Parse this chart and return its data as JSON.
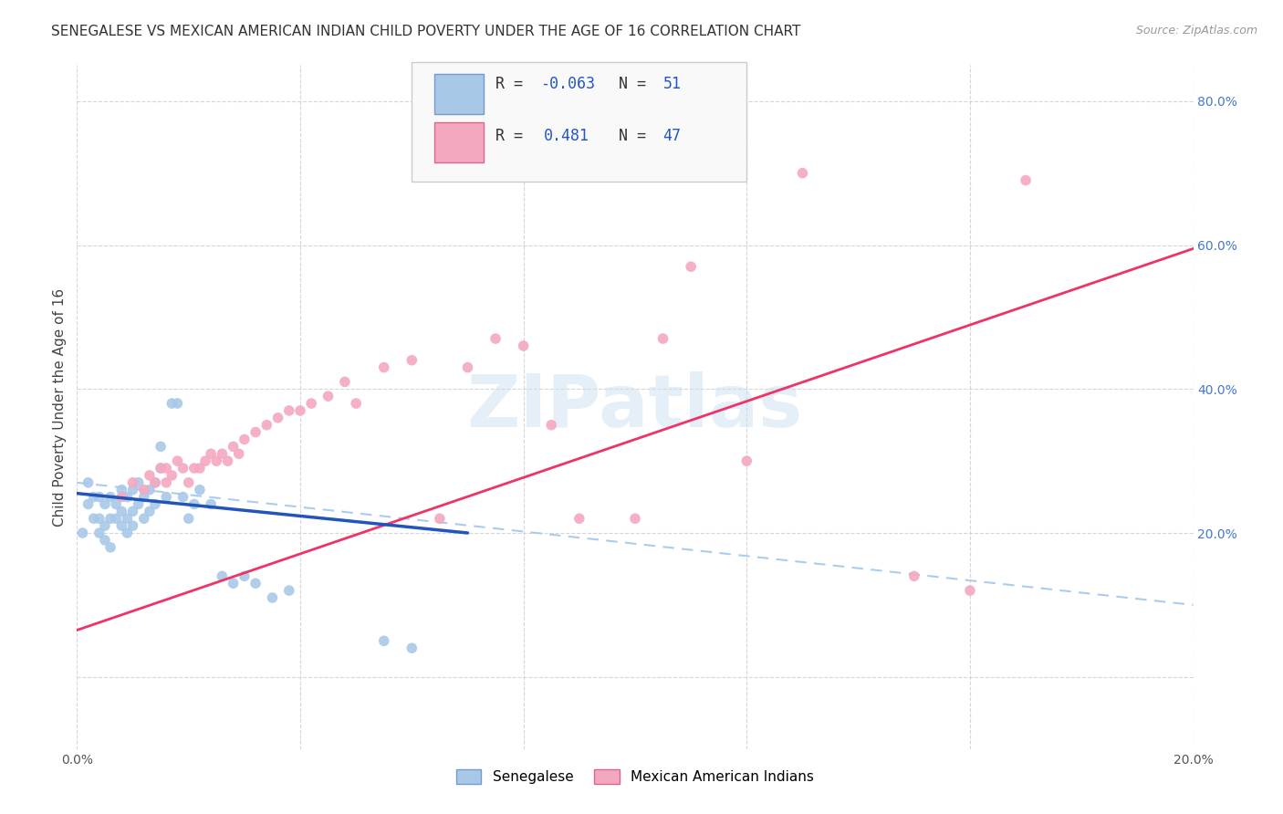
{
  "title": "SENEGALESE VS MEXICAN AMERICAN INDIAN CHILD POVERTY UNDER THE AGE OF 16 CORRELATION CHART",
  "source": "Source: ZipAtlas.com",
  "ylabel": "Child Poverty Under the Age of 16",
  "watermark": "ZIPatlas",
  "xlim": [
    0.0,
    0.2
  ],
  "ylim": [
    -0.1,
    0.85
  ],
  "xtick_positions": [
    0.0,
    0.04,
    0.08,
    0.12,
    0.16,
    0.2
  ],
  "xtick_labels": [
    "0.0%",
    "",
    "",
    "",
    "",
    "20.0%"
  ],
  "ytick_positions": [
    0.0,
    0.2,
    0.4,
    0.6,
    0.8
  ],
  "ytick_labels": [
    "",
    "20.0%",
    "40.0%",
    "60.0%",
    "80.0%"
  ],
  "blue_scatter_x": [
    0.001,
    0.002,
    0.002,
    0.003,
    0.003,
    0.004,
    0.004,
    0.004,
    0.005,
    0.005,
    0.005,
    0.006,
    0.006,
    0.006,
    0.007,
    0.007,
    0.008,
    0.008,
    0.008,
    0.009,
    0.009,
    0.009,
    0.01,
    0.01,
    0.01,
    0.011,
    0.011,
    0.012,
    0.012,
    0.013,
    0.013,
    0.014,
    0.014,
    0.015,
    0.015,
    0.016,
    0.017,
    0.018,
    0.019,
    0.02,
    0.021,
    0.022,
    0.024,
    0.026,
    0.028,
    0.03,
    0.032,
    0.035,
    0.038,
    0.055,
    0.06
  ],
  "blue_scatter_y": [
    0.2,
    0.24,
    0.27,
    0.22,
    0.25,
    0.2,
    0.22,
    0.25,
    0.19,
    0.21,
    0.24,
    0.18,
    0.22,
    0.25,
    0.22,
    0.24,
    0.21,
    0.23,
    0.26,
    0.2,
    0.22,
    0.25,
    0.21,
    0.23,
    0.26,
    0.24,
    0.27,
    0.22,
    0.25,
    0.23,
    0.26,
    0.24,
    0.27,
    0.29,
    0.32,
    0.25,
    0.38,
    0.38,
    0.25,
    0.22,
    0.24,
    0.26,
    0.24,
    0.14,
    0.13,
    0.14,
    0.13,
    0.11,
    0.12,
    0.05,
    0.04
  ],
  "pink_scatter_x": [
    0.008,
    0.01,
    0.012,
    0.013,
    0.014,
    0.015,
    0.016,
    0.016,
    0.017,
    0.018,
    0.019,
    0.02,
    0.021,
    0.022,
    0.023,
    0.024,
    0.025,
    0.026,
    0.027,
    0.028,
    0.029,
    0.03,
    0.032,
    0.034,
    0.036,
    0.038,
    0.04,
    0.042,
    0.045,
    0.048,
    0.05,
    0.055,
    0.06,
    0.065,
    0.07,
    0.075,
    0.08,
    0.085,
    0.09,
    0.1,
    0.105,
    0.11,
    0.12,
    0.13,
    0.15,
    0.16,
    0.17
  ],
  "pink_scatter_y": [
    0.25,
    0.27,
    0.26,
    0.28,
    0.27,
    0.29,
    0.27,
    0.29,
    0.28,
    0.3,
    0.29,
    0.27,
    0.29,
    0.29,
    0.3,
    0.31,
    0.3,
    0.31,
    0.3,
    0.32,
    0.31,
    0.33,
    0.34,
    0.35,
    0.36,
    0.37,
    0.37,
    0.38,
    0.39,
    0.41,
    0.38,
    0.43,
    0.44,
    0.22,
    0.43,
    0.47,
    0.46,
    0.35,
    0.22,
    0.22,
    0.47,
    0.57,
    0.3,
    0.7,
    0.14,
    0.12,
    0.69
  ],
  "blue_line_x": [
    0.0,
    0.07
  ],
  "blue_line_y": [
    0.255,
    0.2
  ],
  "pink_solid_line_x": [
    0.0,
    0.2
  ],
  "pink_solid_line_y": [
    0.065,
    0.595
  ],
  "blue_dashed_line_x": [
    0.0,
    0.2
  ],
  "blue_dashed_line_y": [
    0.27,
    0.1
  ],
  "background_color": "#ffffff",
  "grid_color": "#cccccc",
  "scatter_size": 70,
  "blue_scatter_color": "#a8c8e8",
  "pink_scatter_color": "#f4a8c0",
  "blue_line_color": "#2255bb",
  "pink_line_color": "#ee3366",
  "blue_dashed_color": "#aaccee",
  "title_fontsize": 11,
  "axis_label_fontsize": 11,
  "tick_fontsize": 10,
  "source_fontsize": 9,
  "legend_r1": "R = -0.063",
  "legend_n1": "N = 51",
  "legend_r2": "R =  0.481",
  "legend_n2": "N = 47",
  "legend_label1": "Senegalese",
  "legend_label2": "Mexican American Indians"
}
